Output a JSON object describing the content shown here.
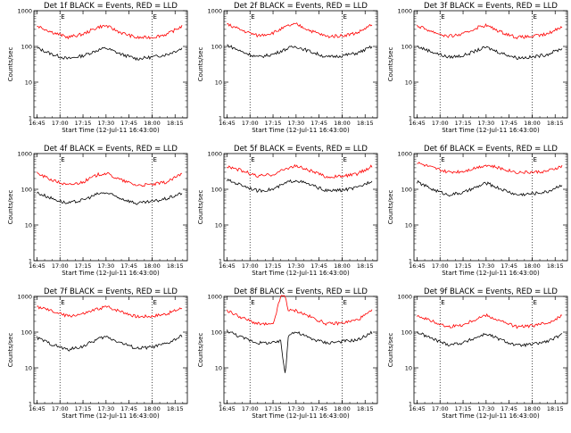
{
  "chart_data": [
    {
      "type": "line",
      "title": "Det 1f BLACK = Events, RED = LLD",
      "xlabel": "Start Time (12-Jul-11 16:43:00)",
      "ylabel": "Counts/sec",
      "yscale": "log",
      "ylim": [
        1,
        1000
      ],
      "xlim": [
        "16:43",
        "18:23"
      ],
      "x_ticks": [
        "16:45",
        "17:00",
        "17:15",
        "17:30",
        "17:45",
        "18:00",
        "18:15"
      ],
      "y_ticks": [
        "1",
        "10",
        "100",
        "1000"
      ],
      "markers": [
        "E",
        "E"
      ],
      "dotted_lines": [
        "17:00",
        "18:00"
      ],
      "colors": {
        "events": "#000000",
        "lld": "#ff0000"
      },
      "series": [
        {
          "name": "BLACK = Events",
          "x": [
            "16:45",
            "16:55",
            "17:05",
            "17:15",
            "17:25",
            "17:30",
            "17:40",
            "17:50",
            "18:00",
            "18:10",
            "18:20"
          ],
          "y": [
            90,
            60,
            45,
            55,
            80,
            90,
            60,
            45,
            50,
            60,
            90
          ]
        },
        {
          "name": "RED = LLD",
          "x": [
            "16:45",
            "16:55",
            "17:05",
            "17:15",
            "17:25",
            "17:30",
            "17:40",
            "17:50",
            "18:00",
            "18:10",
            "18:20"
          ],
          "y": [
            380,
            250,
            180,
            220,
            350,
            380,
            240,
            175,
            180,
            220,
            380
          ]
        }
      ]
    },
    {
      "type": "line",
      "title": "Det 2f BLACK = Events, RED = LLD",
      "xlabel": "Start Time (12-Jul-11 16:43:00)",
      "ylabel": "Counts/sec",
      "yscale": "log",
      "ylim": [
        1,
        1000
      ],
      "xlim": [
        "16:43",
        "18:23"
      ],
      "x_ticks": [
        "16:45",
        "17:00",
        "17:15",
        "17:30",
        "17:45",
        "18:00",
        "18:15"
      ],
      "y_ticks": [
        "1",
        "10",
        "100",
        "1000"
      ],
      "markers": [
        "E",
        "E"
      ],
      "dotted_lines": [
        "17:00",
        "18:00"
      ],
      "colors": {
        "events": "#000000",
        "lld": "#ff0000"
      },
      "series": [
        {
          "name": "BLACK = Events",
          "x": [
            "16:45",
            "16:55",
            "17:05",
            "17:15",
            "17:25",
            "17:30",
            "17:40",
            "17:50",
            "18:00",
            "18:10",
            "18:20"
          ],
          "y": [
            110,
            70,
            50,
            60,
            90,
            100,
            70,
            50,
            55,
            65,
            100
          ]
        },
        {
          "name": "RED = LLD",
          "x": [
            "16:45",
            "16:55",
            "17:05",
            "17:15",
            "17:25",
            "17:30",
            "17:40",
            "17:50",
            "18:00",
            "18:10",
            "18:20"
          ],
          "y": [
            420,
            280,
            200,
            240,
            380,
            420,
            270,
            190,
            200,
            240,
            420
          ]
        }
      ]
    },
    {
      "type": "line",
      "title": "Det 3f BLACK = Events, RED = LLD",
      "xlabel": "Start Time (12-Jul-11 16:43:00)",
      "ylabel": "Counts/sec",
      "yscale": "log",
      "ylim": [
        1,
        1000
      ],
      "xlim": [
        "16:43",
        "18:23"
      ],
      "x_ticks": [
        "16:45",
        "17:00",
        "17:15",
        "17:30",
        "17:45",
        "18:00",
        "18:15"
      ],
      "y_ticks": [
        "1",
        "10",
        "100",
        "1000"
      ],
      "markers": [
        "E",
        "E"
      ],
      "dotted_lines": [
        "17:00",
        "18:00"
      ],
      "colors": {
        "events": "#000000",
        "lld": "#ff0000"
      },
      "series": [
        {
          "name": "BLACK = Events",
          "x": [
            "16:45",
            "16:55",
            "17:05",
            "17:15",
            "17:25",
            "17:30",
            "17:40",
            "17:50",
            "18:00",
            "18:10",
            "18:20"
          ],
          "y": [
            100,
            70,
            50,
            55,
            80,
            95,
            65,
            48,
            50,
            60,
            90
          ]
        },
        {
          "name": "RED = LLD",
          "x": [
            "16:45",
            "16:55",
            "17:05",
            "17:15",
            "17:25",
            "17:30",
            "17:40",
            "17:50",
            "18:00",
            "18:10",
            "18:20"
          ],
          "y": [
            380,
            260,
            190,
            220,
            350,
            390,
            250,
            180,
            190,
            220,
            380
          ]
        }
      ]
    },
    {
      "type": "line",
      "title": "Det 4f BLACK = Events, RED = LLD",
      "xlabel": "Start Time (12-Jul-11 16:43:00)",
      "ylabel": "Counts/sec",
      "yscale": "log",
      "ylim": [
        1,
        1000
      ],
      "xlim": [
        "16:43",
        "18:23"
      ],
      "x_ticks": [
        "16:45",
        "17:00",
        "17:15",
        "17:30",
        "17:45",
        "18:00",
        "18:15"
      ],
      "y_ticks": [
        "1",
        "10",
        "100",
        "1000"
      ],
      "markers": [
        "E",
        "E"
      ],
      "dotted_lines": [
        "17:00",
        "18:00"
      ],
      "colors": {
        "events": "#000000",
        "lld": "#ff0000"
      },
      "series": [
        {
          "name": "BLACK = Events",
          "x": [
            "16:45",
            "16:55",
            "17:05",
            "17:15",
            "17:25",
            "17:30",
            "17:40",
            "17:50",
            "18:00",
            "18:10",
            "18:20"
          ],
          "y": [
            80,
            55,
            40,
            50,
            75,
            80,
            55,
            40,
            45,
            55,
            80
          ]
        },
        {
          "name": "RED = LLD",
          "x": [
            "16:45",
            "16:55",
            "17:05",
            "17:15",
            "17:25",
            "17:30",
            "17:40",
            "17:50",
            "18:00",
            "18:10",
            "18:20"
          ],
          "y": [
            280,
            180,
            130,
            160,
            260,
            280,
            180,
            130,
            135,
            160,
            280
          ]
        }
      ]
    },
    {
      "type": "line",
      "title": "Det 5f BLACK = Events, RED = LLD",
      "xlabel": "Start Time (12-Jul-11 16:43:00)",
      "ylabel": "Counts/sec",
      "yscale": "log",
      "ylim": [
        1,
        1000
      ],
      "xlim": [
        "16:43",
        "18:23"
      ],
      "x_ticks": [
        "16:45",
        "17:00",
        "17:15",
        "17:30",
        "17:45",
        "18:00",
        "18:15"
      ],
      "y_ticks": [
        "1",
        "10",
        "100",
        "1000"
      ],
      "markers": [
        "E",
        "E"
      ],
      "dotted_lines": [
        "17:00",
        "18:00"
      ],
      "colors": {
        "events": "#000000",
        "lld": "#ff0000"
      },
      "series": [
        {
          "name": "BLACK = Events",
          "x": [
            "16:45",
            "16:55",
            "17:05",
            "17:15",
            "17:25",
            "17:30",
            "17:40",
            "17:50",
            "18:00",
            "18:10",
            "18:20"
          ],
          "y": [
            180,
            130,
            90,
            100,
            160,
            180,
            130,
            90,
            95,
            110,
            180
          ]
        },
        {
          "name": "RED = LLD",
          "x": [
            "16:45",
            "16:55",
            "17:05",
            "17:15",
            "17:25",
            "17:30",
            "17:40",
            "17:50",
            "18:00",
            "18:10",
            "18:20"
          ],
          "y": [
            450,
            330,
            230,
            260,
            400,
            450,
            320,
            220,
            230,
            270,
            450
          ]
        }
      ]
    },
    {
      "type": "line",
      "title": "Det 6f BLACK = Events, RED = LLD",
      "xlabel": "Start Time (12-Jul-11 16:43:00)",
      "ylabel": "Counts/sec",
      "yscale": "log",
      "ylim": [
        1,
        1000
      ],
      "xlim": [
        "16:43",
        "18:23"
      ],
      "x_ticks": [
        "16:45",
        "17:00",
        "17:15",
        "17:30",
        "17:45",
        "18:00",
        "18:15"
      ],
      "y_ticks": [
        "1",
        "10",
        "100",
        "1000"
      ],
      "markers": [
        "E",
        "E"
      ],
      "dotted_lines": [
        "17:00",
        "18:00"
      ],
      "colors": {
        "events": "#000000",
        "lld": "#ff0000"
      },
      "series": [
        {
          "name": "BLACK = Events",
          "x": [
            "16:45",
            "16:55",
            "17:05",
            "17:15",
            "17:25",
            "17:30",
            "17:40",
            "17:50",
            "18:00",
            "18:10",
            "18:20"
          ],
          "y": [
            160,
            100,
            70,
            80,
            120,
            150,
            100,
            70,
            75,
            85,
            140
          ]
        },
        {
          "name": "RED = LLD",
          "x": [
            "16:45",
            "16:55",
            "17:05",
            "17:15",
            "17:25",
            "17:30",
            "17:40",
            "17:50",
            "18:00",
            "18:10",
            "18:20"
          ],
          "y": [
            550,
            400,
            300,
            320,
            420,
            480,
            380,
            300,
            300,
            320,
            450
          ]
        }
      ]
    },
    {
      "type": "line",
      "title": "Det 7f BLACK = Events, RED = LLD",
      "xlabel": "Start Time (12-Jul-11 16:43:00)",
      "ylabel": "Counts/sec",
      "yscale": "log",
      "ylim": [
        1,
        1000
      ],
      "xlim": [
        "16:43",
        "18:23"
      ],
      "x_ticks": [
        "16:45",
        "17:00",
        "17:15",
        "17:30",
        "17:45",
        "18:00",
        "18:15"
      ],
      "y_ticks": [
        "1",
        "10",
        "100",
        "1000"
      ],
      "markers": [
        "E",
        "E"
      ],
      "dotted_lines": [
        "17:00",
        "18:00"
      ],
      "colors": {
        "events": "#000000",
        "lld": "#ff0000"
      },
      "series": [
        {
          "name": "BLACK = Events",
          "x": [
            "16:45",
            "16:55",
            "17:05",
            "17:15",
            "17:25",
            "17:30",
            "17:40",
            "17:50",
            "18:00",
            "18:10",
            "18:20"
          ],
          "y": [
            70,
            45,
            32,
            40,
            65,
            75,
            50,
            35,
            38,
            48,
            80
          ]
        },
        {
          "name": "RED = LLD",
          "x": [
            "16:45",
            "16:55",
            "17:05",
            "17:15",
            "17:25",
            "17:30",
            "17:40",
            "17:50",
            "18:00",
            "18:10",
            "18:20"
          ],
          "y": [
            520,
            380,
            280,
            320,
            450,
            520,
            380,
            270,
            280,
            330,
            480
          ]
        }
      ]
    },
    {
      "type": "line",
      "title": "Det 8f BLACK = Events, RED = LLD",
      "xlabel": "Start Time (12-Jul-11 16:43:00)",
      "ylabel": "Counts/sec",
      "yscale": "log",
      "ylim": [
        1,
        1000
      ],
      "xlim": [
        "16:43",
        "18:23"
      ],
      "x_ticks": [
        "16:45",
        "17:00",
        "17:15",
        "17:30",
        "17:45",
        "18:00",
        "18:15"
      ],
      "y_ticks": [
        "1",
        "10",
        "100",
        "1000"
      ],
      "markers": [
        "E",
        "E"
      ],
      "dotted_lines": [
        "17:00",
        "18:00"
      ],
      "colors": {
        "events": "#000000",
        "lld": "#ff0000"
      },
      "series": [
        {
          "name": "BLACK = Events",
          "x": [
            "16:45",
            "16:55",
            "17:05",
            "17:15",
            "17:20",
            "17:23",
            "17:25",
            "17:30",
            "17:40",
            "17:50",
            "18:00",
            "18:10",
            "18:20"
          ],
          "y": [
            110,
            70,
            50,
            50,
            55,
            6,
            90,
            100,
            65,
            50,
            55,
            60,
            100
          ]
        },
        {
          "name": "RED = LLD",
          "x": [
            "16:45",
            "16:55",
            "17:05",
            "17:15",
            "17:20",
            "17:23",
            "17:25",
            "17:30",
            "17:40",
            "17:50",
            "18:00",
            "18:10",
            "18:20"
          ],
          "y": [
            400,
            250,
            170,
            160,
            1000,
            1000,
            400,
            400,
            260,
            170,
            180,
            220,
            400
          ]
        }
      ]
    },
    {
      "type": "line",
      "title": "Det 9f BLACK = Events, RED = LLD",
      "xlabel": "Start Time (12-Jul-11 16:43:00)",
      "ylabel": "Counts/sec",
      "yscale": "log",
      "ylim": [
        1,
        1000
      ],
      "xlim": [
        "16:43",
        "18:23"
      ],
      "x_ticks": [
        "16:45",
        "17:00",
        "17:15",
        "17:30",
        "17:45",
        "18:00",
        "18:15"
      ],
      "y_ticks": [
        "1",
        "10",
        "100",
        "1000"
      ],
      "markers": [
        "E",
        "E"
      ],
      "dotted_lines": [
        "17:00",
        "18:00"
      ],
      "colors": {
        "events": "#000000",
        "lld": "#ff0000"
      },
      "series": [
        {
          "name": "BLACK = Events",
          "x": [
            "16:45",
            "16:55",
            "17:05",
            "17:15",
            "17:25",
            "17:30",
            "17:40",
            "17:50",
            "18:00",
            "18:10",
            "18:20"
          ],
          "y": [
            100,
            65,
            45,
            50,
            75,
            90,
            60,
            42,
            45,
            55,
            85
          ]
        },
        {
          "name": "RED = LLD",
          "x": [
            "16:45",
            "16:55",
            "17:05",
            "17:15",
            "17:25",
            "17:30",
            "17:40",
            "17:50",
            "18:00",
            "18:10",
            "18:20"
          ],
          "y": [
            300,
            200,
            140,
            160,
            250,
            300,
            200,
            140,
            150,
            180,
            300
          ]
        }
      ]
    }
  ]
}
